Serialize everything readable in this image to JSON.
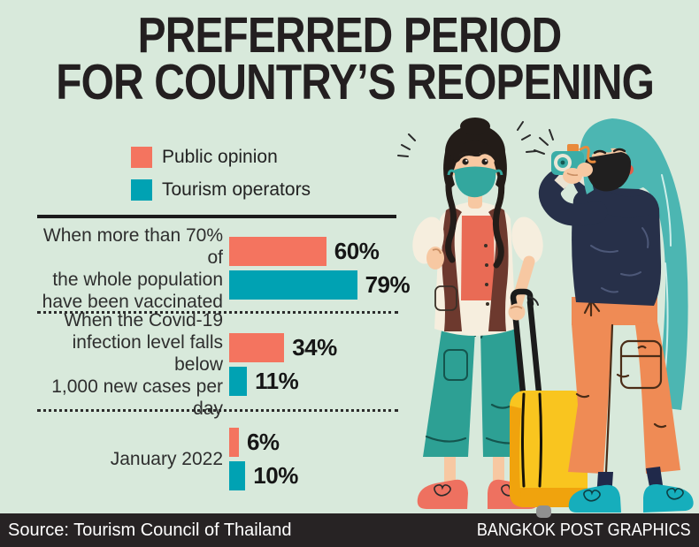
{
  "title": {
    "line1": "PREFERRED PERIOD",
    "line2": "FOR COUNTRY’S REOPENING"
  },
  "chart_data": {
    "type": "bar",
    "orientation": "horizontal",
    "value_unit": "%",
    "xlim": [
      0,
      100
    ],
    "legend_position": "top-left",
    "categories": [
      "When more than 70% of the whole population have been vaccinated",
      "When the Covid-19 infection level falls below 1,000 new cases per day",
      "January 2022"
    ],
    "category_lines": [
      [
        "When more than 70% of",
        "the whole population",
        "have been vaccinated"
      ],
      [
        "When the Covid-19",
        "infection level falls below",
        "1,000 new cases per day"
      ],
      [
        "January 2022"
      ]
    ],
    "series": [
      {
        "name": "Public opinion",
        "color": "#f4745f",
        "values": [
          60,
          34,
          6
        ]
      },
      {
        "name": "Tourism operators",
        "color": "#00a2b3",
        "values": [
          79,
          11,
          10
        ]
      }
    ]
  },
  "footer": {
    "source": "Source: Tourism Council of Thailand",
    "credit": "BANGKOK POST GRAPHICS"
  },
  "colors": {
    "background": "#d8e9db",
    "title_text": "#231f20",
    "body_text": "#2e2e2e",
    "footer_bg": "#272324",
    "footer_text": "#ffffff"
  },
  "illustration": {
    "alt": "Two travellers wearing face masks: one with a backpack holding a yellow rolling suitcase, one taking a photo with a camera"
  }
}
